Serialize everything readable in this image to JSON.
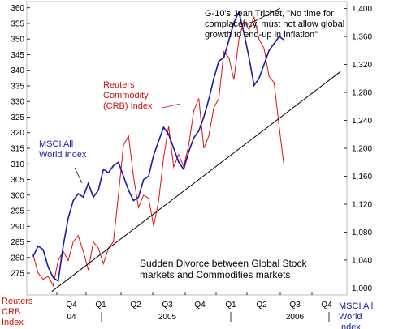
{
  "chart_data": {
    "type": "line",
    "title": "",
    "annotation_top": "G-10's Jean Trichet, \"No time for complacency, must not allow global growth to end-up in inflation\"",
    "annotation_crb": "Reuters Commodity (CRB) Index",
    "annotation_msci": "MSCI All World Index",
    "annotation_bottom": "Sudden Divorce between Global Stock markets and Commodities markets",
    "left_axis": {
      "label": "Reuters CRB Index",
      "ticks": [
        275,
        280,
        285,
        290,
        295,
        300,
        305,
        310,
        315,
        320,
        325,
        330,
        335,
        340,
        345,
        350,
        355,
        360
      ],
      "ylim": [
        268,
        362
      ]
    },
    "right_axis": {
      "label": "MSCI All World Index",
      "ticks": [
        1000,
        1040,
        1080,
        1120,
        1160,
        1200,
        1240,
        1280,
        1320,
        1360,
        1400
      ],
      "ylim": [
        990,
        1410
      ]
    },
    "x_quarter_labels": [
      "Q4",
      "Q1",
      "Q2",
      "Q3",
      "Q4",
      "Q1",
      "Q2",
      "Q3",
      "Q4"
    ],
    "x_year_labels": [
      "04",
      "2005",
      "2006"
    ],
    "colors": {
      "crb": "#dd1111",
      "msci": "#1a1aa0",
      "trend": "#000000",
      "axis_label_red": "#cc1111",
      "axis_label_blue": "#1a1aa0"
    },
    "series": [
      {
        "name": "Reuters Commodity (CRB) Index",
        "axis": "left",
        "x": [
          0,
          0.8,
          1.6,
          2.4,
          3.2,
          4,
          4.8,
          5.6,
          6.4,
          7.2,
          8,
          8.8,
          9.6,
          10.4,
          11.2,
          12,
          12.8,
          13.6,
          14.4,
          15.2,
          16,
          16.8,
          17.6,
          18.4,
          19.2,
          20,
          20.8,
          21.6,
          22.4,
          23.2,
          24,
          24.8,
          25.6,
          26.4,
          27.2,
          28,
          28.8,
          29.6,
          30.4,
          31.2,
          32,
          32.8,
          33.6,
          34.4,
          35.2,
          36,
          36.8,
          37.6,
          38.4,
          39.2,
          40
        ],
        "values": [
          281,
          275,
          273,
          274,
          271,
          279,
          282,
          279,
          285,
          287,
          282,
          276,
          285,
          283,
          278,
          283,
          285,
          300,
          316,
          319,
          306,
          296,
          300,
          299,
          290,
          298,
          312,
          322,
          309,
          313,
          309,
          316,
          327,
          331,
          315,
          319,
          328,
          331,
          346,
          344,
          337,
          350,
          356,
          353,
          357,
          350,
          347,
          338,
          336,
          322,
          309
        ]
      },
      {
        "name": "MSCI All World Index",
        "axis": "right",
        "x": [
          0,
          0.8,
          1.6,
          2.4,
          3.2,
          4,
          4.8,
          5.6,
          6.4,
          7.2,
          8,
          8.8,
          9.6,
          10.4,
          11.2,
          12,
          12.8,
          13.6,
          14.4,
          15.2,
          16,
          16.8,
          17.6,
          18.4,
          19.2,
          20,
          20.8,
          21.6,
          22.4,
          23.2,
          24,
          24.8,
          25.6,
          26.4,
          27.2,
          28,
          28.8,
          29.6,
          30.4,
          31.2,
          32,
          32.8,
          33.6,
          34.4,
          35.2,
          36,
          36.8,
          37.6,
          38.4,
          39.2,
          40
        ],
        "values": [
          1045,
          1060,
          1055,
          1030,
          1015,
          1010,
          1060,
          1100,
          1125,
          1135,
          1130,
          1150,
          1130,
          1140,
          1170,
          1165,
          1175,
          1180,
          1160,
          1140,
          1125,
          1130,
          1155,
          1160,
          1190,
          1210,
          1230,
          1220,
          1200,
          1180,
          1170,
          1195,
          1215,
          1225,
          1245,
          1270,
          1300,
          1325,
          1330,
          1355,
          1380,
          1395,
          1365,
          1330,
          1290,
          1300,
          1320,
          1340,
          1350,
          1360,
          1355
        ]
      },
      {
        "name": "",
        "axis": "right",
        "x": [
          3,
          49
        ],
        "values": [
          995,
          1310
        ]
      }
    ]
  }
}
